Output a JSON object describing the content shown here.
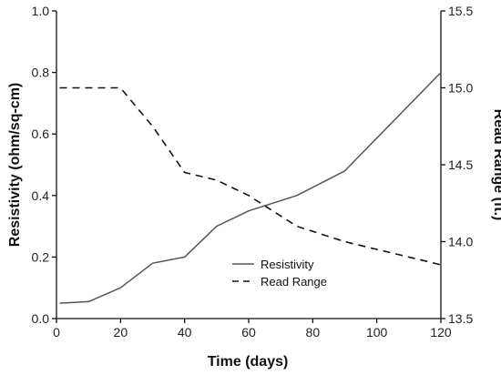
{
  "chart_data": {
    "type": "line",
    "xlabel": "Time (days)",
    "ylabel": "Resistivity (ohm/sq-cm)",
    "y2label": "Read Range (ft.)",
    "xlim": [
      0,
      120
    ],
    "ylim": [
      0,
      1.0
    ],
    "y2lim": [
      13.5,
      15.5
    ],
    "xticks": [
      "0",
      "20",
      "40",
      "60",
      "80",
      "100",
      "120"
    ],
    "yticks": [
      "0.0",
      "0.2",
      "0.4",
      "0.6",
      "0.8",
      "1.0"
    ],
    "y2ticks": [
      "13.5",
      "14.0",
      "14.5",
      "15.0",
      "15.5"
    ],
    "grid": false,
    "legend_position": "lower-center",
    "series": [
      {
        "name": "Resistivity",
        "axis": "left",
        "style": "solid",
        "color": "#555555",
        "x": [
          1,
          10,
          20,
          30,
          40,
          50,
          60,
          75,
          90,
          120
        ],
        "y": [
          0.05,
          0.055,
          0.1,
          0.18,
          0.2,
          0.3,
          0.35,
          0.4,
          0.48,
          0.8
        ]
      },
      {
        "name": "Read Range",
        "axis": "right",
        "style": "dashed",
        "color": "#111111",
        "x": [
          1,
          10,
          20,
          30,
          40,
          50,
          60,
          75,
          90,
          120
        ],
        "y": [
          15.0,
          15.0,
          15.0,
          14.75,
          14.45,
          14.4,
          14.3,
          14.1,
          14.0,
          13.85
        ]
      }
    ]
  }
}
